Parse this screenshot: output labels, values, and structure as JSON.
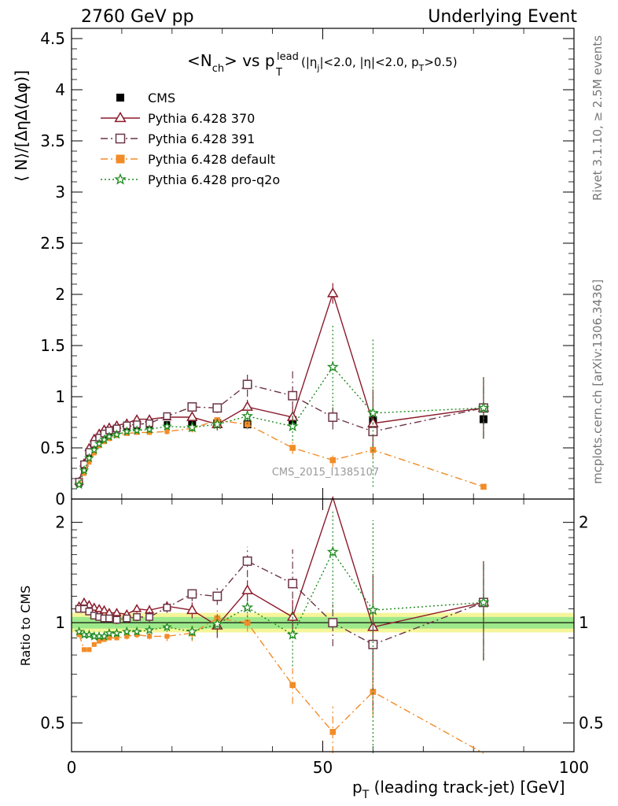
{
  "header": {
    "left": "2760 GeV pp",
    "right": "Underlying Event"
  },
  "plot_title": {
    "main": "<N",
    "ch": "ch",
    "vs": "> vs p",
    "sup": "lead",
    "sub": "T",
    "cuts_a": "(|η",
    "cuts_j": "j",
    "cuts_b": "|<2.0, |η|<2.0, p",
    "cuts_t": "T",
    "cuts_c": ">0.5)"
  },
  "side_labels": {
    "rivet": "Rivet 3.1.10, ≥ 2.5M events",
    "mcplots": "mcplots.cern.ch [arXiv:1306.3436]"
  },
  "watermark": "CMS_2015_I1385107",
  "axes": {
    "ylabel_top": "⟨ N⟩/[ΔηΔ(Δφ)]",
    "ylabel_bottom": "Ratio to CMS",
    "xlabel_main": "p",
    "xlabel_sub": "T",
    "xlabel_rest": " (leading track-jet) [GeV]"
  },
  "legend": [
    {
      "label": "CMS",
      "color": "#000000",
      "marker": "filled-square",
      "dash": "none"
    },
    {
      "label": "Pythia 6.428 370",
      "color": "#8b1a2b",
      "marker": "open-triangle",
      "dash": "solid"
    },
    {
      "label": "Pythia 6.428 391",
      "color": "#6b3545",
      "marker": "open-square",
      "dash": "dashdot"
    },
    {
      "label": "Pythia 6.428 default",
      "color": "#f28c28",
      "marker": "filled-square",
      "dash": "dashdot"
    },
    {
      "label": "Pythia 6.428 pro-q2o",
      "color": "#1e8a1e",
      "marker": "star",
      "dash": "dotted"
    }
  ],
  "chart_data": {
    "type": "line",
    "x": [
      1.5,
      2.5,
      3.5,
      4.5,
      5.5,
      6.5,
      7.5,
      9,
      11,
      13,
      15.5,
      19,
      24,
      29,
      35,
      44,
      52,
      60,
      82
    ],
    "xlim": [
      0,
      100
    ],
    "xticks": [
      0,
      50,
      100
    ],
    "main": {
      "ylim": [
        0,
        4.6
      ],
      "yticks": [
        0,
        0.5,
        1,
        1.5,
        2,
        2.5,
        3,
        3.5,
        4,
        4.5
      ],
      "series": [
        {
          "name": "CMS",
          "values": [
            0.15,
            0.3,
            0.43,
            0.52,
            0.58,
            0.62,
            0.65,
            0.68,
            0.7,
            0.71,
            0.72,
            0.73,
            0.74,
            0.74,
            0.73,
            0.77,
            0.8,
            0.77,
            0.78
          ],
          "err": [
            0.01,
            0.01,
            0.01,
            0.01,
            0.01,
            0.01,
            0.01,
            0.01,
            0.01,
            0.02,
            0.02,
            0.02,
            0.03,
            0.03,
            0.04,
            0.05,
            0.05,
            0.05,
            0.05
          ]
        },
        {
          "name": "Pythia 6.428 370",
          "values": [
            0.17,
            0.35,
            0.5,
            0.59,
            0.64,
            0.68,
            0.7,
            0.72,
            0.74,
            0.78,
            0.78,
            0.8,
            0.8,
            0.73,
            0.9,
            0.8,
            2.01,
            0.74,
            0.89
          ],
          "err": [
            0.01,
            0.01,
            0.01,
            0.01,
            0.01,
            0.01,
            0.01,
            0.02,
            0.02,
            0.02,
            0.03,
            0.03,
            0.05,
            0.06,
            0.07,
            0.1,
            0.1,
            0.33,
            0.3
          ]
        },
        {
          "name": "Pythia 6.428 391",
          "values": [
            0.17,
            0.34,
            0.46,
            0.54,
            0.6,
            0.64,
            0.67,
            0.69,
            0.72,
            0.73,
            0.74,
            0.81,
            0.9,
            0.89,
            1.12,
            1.01,
            0.8,
            0.66,
            0.89
          ],
          "err": [
            0.01,
            0.01,
            0.01,
            0.01,
            0.01,
            0.01,
            0.01,
            0.02,
            0.02,
            0.02,
            0.03,
            0.03,
            0.04,
            0.05,
            0.12,
            0.27,
            0.12,
            0.18,
            0.3
          ]
        },
        {
          "name": "Pythia 6.428 default",
          "values": [
            0.14,
            0.25,
            0.36,
            0.45,
            0.52,
            0.56,
            0.59,
            0.62,
            0.64,
            0.65,
            0.65,
            0.66,
            0.69,
            0.77,
            0.73,
            0.5,
            0.38,
            0.48,
            0.12
          ],
          "err": [
            0.01,
            0.01,
            0.01,
            0.01,
            0.01,
            0.01,
            0.01,
            0.01,
            0.02,
            0.02,
            0.02,
            0.03,
            0.04,
            0.05,
            0.05,
            0.06,
            0.07,
            0.08,
            0.02
          ]
        },
        {
          "name": "Pythia 6.428 pro-q2o",
          "values": [
            0.14,
            0.28,
            0.4,
            0.48,
            0.54,
            0.58,
            0.61,
            0.63,
            0.66,
            0.67,
            0.68,
            0.71,
            0.7,
            0.73,
            0.81,
            0.71,
            1.29,
            0.84,
            0.89
          ],
          "err": [
            0.01,
            0.01,
            0.01,
            0.01,
            0.01,
            0.01,
            0.01,
            0.02,
            0.02,
            0.02,
            0.03,
            0.03,
            0.04,
            0.05,
            0.08,
            0.14,
            0.42,
            0.72,
            0.3
          ]
        }
      ]
    },
    "ratio": {
      "ylim": [
        0.41,
        2.35
      ],
      "log": true,
      "yticks": [
        0.5,
        1,
        2
      ],
      "band_outer": [
        0.935,
        1.07
      ],
      "band_inner": [
        0.96,
        1.04
      ],
      "series": [
        {
          "name": "Pythia 6.428 370",
          "values": [
            1.12,
            1.15,
            1.13,
            1.11,
            1.1,
            1.09,
            1.07,
            1.07,
            1.06,
            1.1,
            1.09,
            1.12,
            1.09,
            0.98,
            1.25,
            1.04,
            2.5,
            0.97,
            1.15
          ],
          "err": [
            0.02,
            0.02,
            0.02,
            0.02,
            0.02,
            0.02,
            0.02,
            0.02,
            0.03,
            0.03,
            0.04,
            0.04,
            0.06,
            0.08,
            0.09,
            0.13,
            0.13,
            0.43,
            0.38
          ]
        },
        {
          "name": "Pythia 6.428 391",
          "values": [
            1.1,
            1.1,
            1.08,
            1.05,
            1.04,
            1.03,
            1.03,
            1.02,
            1.03,
            1.04,
            1.04,
            1.11,
            1.22,
            1.2,
            1.53,
            1.31,
            1.0,
            0.86,
            1.15
          ],
          "err": [
            0.02,
            0.02,
            0.02,
            0.02,
            0.02,
            0.02,
            0.02,
            0.03,
            0.03,
            0.03,
            0.04,
            0.04,
            0.06,
            0.07,
            0.16,
            0.35,
            0.15,
            0.23,
            0.38
          ]
        },
        {
          "name": "Pythia 6.428 default",
          "values": [
            0.92,
            0.83,
            0.83,
            0.86,
            0.88,
            0.89,
            0.9,
            0.9,
            0.91,
            0.92,
            0.91,
            0.91,
            0.93,
            1.03,
            1.0,
            0.65,
            0.47,
            0.62,
            0.15
          ],
          "err": [
            0.01,
            0.01,
            0.01,
            0.01,
            0.01,
            0.01,
            0.01,
            0.01,
            0.02,
            0.02,
            0.02,
            0.03,
            0.05,
            0.06,
            0.06,
            0.08,
            0.09,
            0.1,
            0.03
          ]
        },
        {
          "name": "Pythia 6.428 pro-q2o",
          "values": [
            0.94,
            0.92,
            0.92,
            0.91,
            0.91,
            0.91,
            0.93,
            0.93,
            0.94,
            0.94,
            0.95,
            0.97,
            0.94,
            0.99,
            1.11,
            0.92,
            1.63,
            1.09,
            1.15
          ],
          "err": [
            0.01,
            0.01,
            0.01,
            0.01,
            0.01,
            0.01,
            0.01,
            0.02,
            0.02,
            0.02,
            0.03,
            0.03,
            0.05,
            0.06,
            0.1,
            0.18,
            0.55,
            0.94,
            0.38
          ]
        }
      ]
    }
  }
}
